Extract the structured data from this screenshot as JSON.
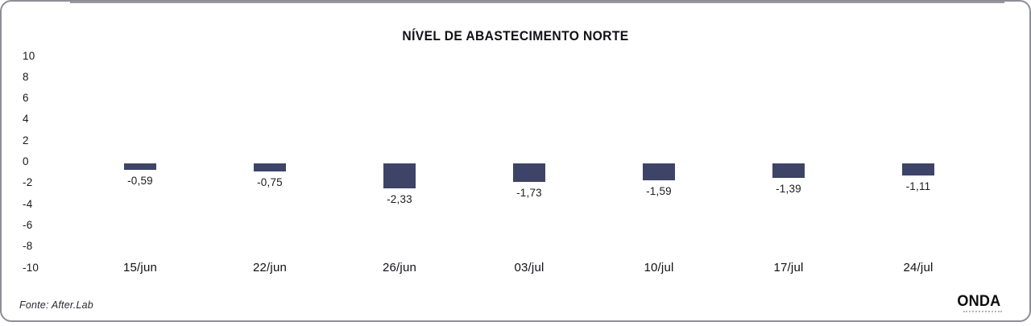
{
  "chart_data": {
    "type": "bar",
    "title": "NÍVEL DE ABASTECIMENTO NORTE",
    "categories": [
      "15/jun",
      "22/jun",
      "26/jun",
      "03/jul",
      "10/jul",
      "17/jul",
      "24/jul"
    ],
    "values": [
      -0.59,
      -0.75,
      -2.33,
      -1.73,
      -1.59,
      -1.39,
      -1.11
    ],
    "value_labels": [
      "-0,59",
      "-0,75",
      "-2,33",
      "-1,73",
      "-1,59",
      "-1,39",
      "-1,11"
    ],
    "y_ticks": [
      "10",
      "8",
      "6",
      "4",
      "2",
      "0",
      "-2",
      "-4",
      "-6",
      "-8",
      "-10"
    ],
    "y_tick_values": [
      10,
      8,
      6,
      4,
      2,
      0,
      -2,
      -4,
      -6,
      -8,
      -10
    ],
    "ylim": [
      -10,
      10
    ],
    "xlabel": "",
    "ylabel": "",
    "grid": false,
    "legend": "none",
    "bar_color": "#3d4467",
    "axis_line_color": "#9b9b9b"
  },
  "footer": {
    "source": "Fonte: After.Lab",
    "brand": "ONDA"
  }
}
